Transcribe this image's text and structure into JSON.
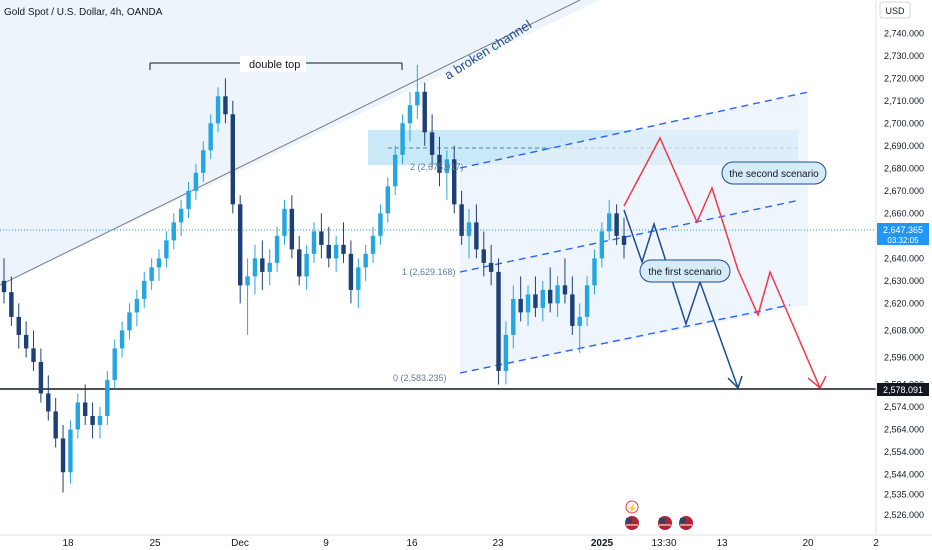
{
  "header": {
    "symbol_title": "Gold Spot / U.S. Dollar, 4h, OANDA"
  },
  "chart_data": {
    "type": "candlestick",
    "currency": "USD",
    "y_axis": {
      "range": [
        2526,
        2745
      ],
      "ticks": [
        2526,
        2535,
        2544,
        2554,
        2564,
        2574,
        2584,
        2596,
        2608,
        2620,
        2630,
        2640,
        2650,
        2660,
        2670,
        2680,
        2690,
        2700,
        2710,
        2720,
        2730,
        2740
      ],
      "tick_labels": [
        "2,526.000",
        "2,535.000",
        "2,544.000",
        "2,554.000",
        "2,564.000",
        "2,574.000",
        "2,584.000",
        "2,596.000",
        "2,608.000",
        "2,620.000",
        "2,630.000",
        "2,640.000",
        "2,650.000",
        "2,660.000",
        "2,670.000",
        "2,680.000",
        "2,690.000",
        "2,700.000",
        "2,710.000",
        "2,720.000",
        "2,730.000",
        "2,740.000"
      ]
    },
    "x_axis": {
      "tick_labels": [
        "18",
        "25",
        "Dec",
        "9",
        "16",
        "23",
        "2025",
        "13:30",
        "13",
        "20",
        "2"
      ]
    },
    "price_line": {
      "value": 2647.365,
      "label": "2,647.365",
      "countdown": "03:32:05",
      "color": "#2196f3"
    },
    "support_line": {
      "value": 2578.091,
      "label": "2,578.091",
      "color": "#131722"
    },
    "fib_levels": [
      {
        "level": 0,
        "value": 2583.235,
        "label": "0 (2,583.235)"
      },
      {
        "level": 1,
        "value": 2629.168,
        "label": "1 (2,629.168)"
      },
      {
        "level": 2,
        "value": 2675.917,
        "label": "2 (2,675.917)"
      }
    ],
    "annotations": {
      "double_top": "double top",
      "broken_channel": "a broken channel",
      "second_scenario": "the second scenario",
      "first_scenario": "the first scenario"
    },
    "colors": {
      "up": "#26a6e0",
      "down": "#1f3f77",
      "bear_path": "#f0394a",
      "bull_path": "#1e4b8f",
      "zone": "#bfe5f7"
    },
    "candles": [
      [
        2630,
        2640,
        2620,
        2625
      ],
      [
        2625,
        2632,
        2610,
        2614
      ],
      [
        2614,
        2620,
        2600,
        2606
      ],
      [
        2606,
        2612,
        2596,
        2600
      ],
      [
        2600,
        2608,
        2590,
        2594
      ],
      [
        2594,
        2600,
        2576,
        2580
      ],
      [
        2580,
        2588,
        2568,
        2572
      ],
      [
        2572,
        2578,
        2556,
        2560
      ],
      [
        2560,
        2566,
        2536,
        2545
      ],
      [
        2545,
        2568,
        2540,
        2564
      ],
      [
        2564,
        2580,
        2560,
        2576
      ],
      [
        2576,
        2584,
        2566,
        2570
      ],
      [
        2570,
        2576,
        2560,
        2566
      ],
      [
        2566,
        2574,
        2560,
        2570
      ],
      [
        2570,
        2590,
        2566,
        2586
      ],
      [
        2586,
        2604,
        2582,
        2600
      ],
      [
        2600,
        2612,
        2596,
        2608
      ],
      [
        2608,
        2620,
        2604,
        2616
      ],
      [
        2616,
        2626,
        2610,
        2622
      ],
      [
        2622,
        2634,
        2618,
        2630
      ],
      [
        2630,
        2640,
        2626,
        2636
      ],
      [
        2636,
        2644,
        2630,
        2640
      ],
      [
        2640,
        2652,
        2636,
        2648
      ],
      [
        2648,
        2660,
        2644,
        2656
      ],
      [
        2656,
        2666,
        2650,
        2662
      ],
      [
        2662,
        2674,
        2658,
        2670
      ],
      [
        2670,
        2682,
        2666,
        2678
      ],
      [
        2678,
        2692,
        2674,
        2688
      ],
      [
        2688,
        2704,
        2684,
        2700
      ],
      [
        2700,
        2716,
        2696,
        2712
      ],
      [
        2712,
        2720,
        2700,
        2704
      ],
      [
        2704,
        2710,
        2660,
        2664
      ],
      [
        2664,
        2668,
        2620,
        2628
      ],
      [
        2628,
        2640,
        2606,
        2632
      ],
      [
        2632,
        2646,
        2624,
        2640
      ],
      [
        2640,
        2648,
        2626,
        2634
      ],
      [
        2634,
        2644,
        2628,
        2638
      ],
      [
        2638,
        2654,
        2634,
        2650
      ],
      [
        2650,
        2666,
        2646,
        2662
      ],
      [
        2662,
        2668,
        2640,
        2644
      ],
      [
        2644,
        2650,
        2628,
        2632
      ],
      [
        2632,
        2646,
        2626,
        2642
      ],
      [
        2642,
        2656,
        2638,
        2652
      ],
      [
        2652,
        2660,
        2640,
        2646
      ],
      [
        2646,
        2654,
        2636,
        2640
      ],
      [
        2640,
        2650,
        2634,
        2646
      ],
      [
        2646,
        2656,
        2638,
        2642
      ],
      [
        2642,
        2648,
        2620,
        2626
      ],
      [
        2626,
        2640,
        2618,
        2636
      ],
      [
        2636,
        2646,
        2630,
        2642
      ],
      [
        2642,
        2654,
        2638,
        2650
      ],
      [
        2650,
        2664,
        2646,
        2660
      ],
      [
        2660,
        2676,
        2656,
        2672
      ],
      [
        2672,
        2690,
        2668,
        2686
      ],
      [
        2686,
        2704,
        2682,
        2700
      ],
      [
        2700,
        2714,
        2692,
        2708
      ],
      [
        2708,
        2726,
        2702,
        2714
      ],
      [
        2714,
        2718,
        2690,
        2696
      ],
      [
        2696,
        2704,
        2680,
        2686
      ],
      [
        2686,
        2694,
        2672,
        2678
      ],
      [
        2678,
        2688,
        2666,
        2684
      ],
      [
        2684,
        2690,
        2660,
        2664
      ],
      [
        2664,
        2670,
        2646,
        2650
      ],
      [
        2650,
        2662,
        2640,
        2656
      ],
      [
        2656,
        2664,
        2640,
        2644
      ],
      [
        2644,
        2652,
        2632,
        2638
      ],
      [
        2638,
        2646,
        2628,
        2634
      ],
      [
        2634,
        2640,
        2584,
        2590
      ],
      [
        2590,
        2612,
        2584,
        2606
      ],
      [
        2606,
        2628,
        2600,
        2622
      ],
      [
        2622,
        2632,
        2612,
        2616
      ],
      [
        2616,
        2628,
        2610,
        2624
      ],
      [
        2624,
        2632,
        2614,
        2618
      ],
      [
        2618,
        2630,
        2612,
        2626
      ],
      [
        2626,
        2636,
        2616,
        2620
      ],
      [
        2620,
        2632,
        2614,
        2628
      ],
      [
        2628,
        2640,
        2620,
        2624
      ],
      [
        2624,
        2632,
        2606,
        2610
      ],
      [
        2610,
        2620,
        2598,
        2614
      ],
      [
        2614,
        2632,
        2610,
        2628
      ],
      [
        2628,
        2644,
        2624,
        2640
      ],
      [
        2640,
        2656,
        2636,
        2652
      ],
      [
        2652,
        2666,
        2648,
        2660
      ],
      [
        2660,
        2664,
        2646,
        2650
      ],
      [
        2650,
        2658,
        2640,
        2646
      ]
    ]
  },
  "events": {
    "lightning": "⚡",
    "flag": "flag"
  }
}
